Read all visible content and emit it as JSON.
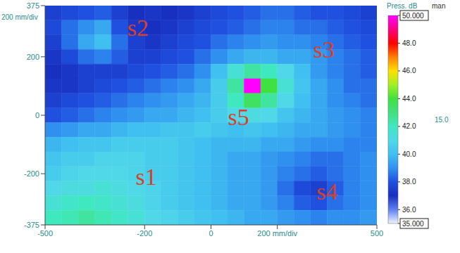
{
  "chart_data": {
    "type": "heatmap",
    "xlim": [
      -500,
      500
    ],
    "ylim": [
      -375,
      375
    ],
    "xticks": [
      -500,
      -200,
      0,
      {
        "value": 200,
        "label": "200 mm/div"
      },
      500
    ],
    "yticks": [
      375,
      200,
      0,
      -200,
      -375
    ],
    "y_axis_note": "200 mm/div",
    "x": [
      -475,
      -425,
      -375,
      -325,
      -275,
      -225,
      -175,
      -125,
      -75,
      -25,
      25,
      75,
      125,
      175,
      225,
      275,
      325,
      375,
      425,
      475
    ],
    "y": [
      350,
      300,
      250,
      200,
      150,
      100,
      50,
      0,
      -50,
      -100,
      -150,
      -200,
      -250,
      -300,
      -350
    ],
    "cells": [
      [
        37.5,
        37.8,
        38,
        38.2,
        37.5,
        37,
        37.2,
        37,
        37.2,
        37.5,
        37.8,
        38,
        38.2,
        38.5,
        38.5,
        38.2,
        38,
        38,
        37.8,
        37.5
      ],
      [
        37.8,
        38.5,
        39,
        39.5,
        38,
        37.2,
        37,
        37.2,
        37.5,
        37.8,
        38,
        38.2,
        38.5,
        38.8,
        38.8,
        38.5,
        38.5,
        38.2,
        38,
        37.8
      ],
      [
        37.5,
        38.5,
        39.5,
        40,
        38.5,
        37.5,
        37.2,
        37.5,
        37.8,
        38,
        38.5,
        38.8,
        39,
        39.2,
        39,
        39,
        38.8,
        38.5,
        38.2,
        38
      ],
      [
        37.2,
        37.8,
        38.5,
        38.8,
        38.2,
        37.5,
        37.5,
        37.8,
        38,
        38.5,
        39,
        39.5,
        39.8,
        39.8,
        39.5,
        39.5,
        39.2,
        38.8,
        38.5,
        38.2
      ],
      [
        37,
        37.2,
        37.5,
        37.5,
        37.5,
        37.8,
        38,
        38.2,
        38.5,
        39,
        40,
        41.5,
        42.5,
        42,
        41,
        40,
        39.2,
        38.8,
        38.5,
        38.2
      ],
      [
        37.2,
        37.2,
        37.5,
        37.8,
        38,
        38.2,
        38.5,
        38.8,
        39,
        39.5,
        40.5,
        42.5,
        50,
        44,
        41.5,
        40.2,
        39.5,
        39,
        38.5,
        38.5
      ],
      [
        37.5,
        37.8,
        38,
        38.2,
        38.5,
        38.8,
        39,
        39.2,
        39.5,
        39.8,
        40.5,
        42,
        43.5,
        42.5,
        41,
        40,
        39.5,
        39,
        38.8,
        38.5
      ],
      [
        38,
        38.2,
        38.5,
        38.8,
        39,
        39.2,
        39.5,
        39.5,
        39.8,
        40,
        40.5,
        41,
        41.2,
        41,
        40.2,
        39.8,
        39.5,
        39.2,
        39,
        38.8
      ],
      [
        39,
        39.2,
        39.5,
        39.5,
        39.8,
        40,
        40,
        40.2,
        40.2,
        40.5,
        40.2,
        40,
        40.2,
        40,
        39.8,
        39.5,
        39.5,
        39.2,
        39,
        38.8
      ],
      [
        39.8,
        40,
        40.2,
        40.2,
        40.5,
        40.5,
        40.5,
        40.5,
        40.2,
        40,
        39.8,
        39.8,
        39.8,
        39.5,
        39.5,
        39.2,
        39,
        39,
        38.8,
        38.8
      ],
      [
        40.2,
        40.5,
        40.5,
        40.8,
        40.8,
        40.8,
        40.5,
        40.5,
        40.2,
        40,
        39.8,
        39.5,
        39.5,
        39.2,
        39,
        38.8,
        38.5,
        38.5,
        38.8,
        39
      ],
      [
        40.5,
        40.8,
        41,
        41,
        41,
        40.8,
        40.5,
        40.5,
        40.2,
        40,
        39.8,
        39.5,
        39.5,
        39.2,
        38.8,
        38.5,
        38.2,
        38.5,
        38.8,
        39
      ],
      [
        41,
        41.2,
        41.2,
        41.5,
        41.2,
        41,
        40.8,
        40.5,
        40.2,
        40,
        39.8,
        39.5,
        39.5,
        39.2,
        38.5,
        37.8,
        37.5,
        38.2,
        38.8,
        39
      ],
      [
        41.5,
        41.8,
        42,
        41.8,
        41.5,
        41.2,
        40.8,
        40.5,
        40.2,
        40,
        39.8,
        39.5,
        39.5,
        39.2,
        38.8,
        38.2,
        38,
        38.5,
        38.8,
        39
      ],
      [
        42,
        42.2,
        42.5,
        42.2,
        41.8,
        41.5,
        41,
        40.8,
        40.5,
        40.2,
        40,
        39.8,
        39.5,
        39.5,
        39.2,
        39,
        38.8,
        39,
        39,
        39.2
      ]
    ],
    "colorbar": {
      "title": "Press. dB",
      "subtitle": "man",
      "range_label": "15.0",
      "lim": [
        35,
        50
      ],
      "ticks": [
        {
          "value": 50,
          "label": "50.000"
        },
        {
          "value": 48,
          "label": "48.0"
        },
        {
          "value": 46,
          "label": "46.0"
        },
        {
          "value": 44,
          "label": "44.0"
        },
        {
          "value": 42,
          "label": "42.0"
        },
        {
          "value": 40,
          "label": "40.0"
        },
        {
          "value": 38,
          "label": "38.0"
        },
        {
          "value": 36,
          "label": "36.0"
        },
        {
          "value": 35,
          "label": "35.000"
        }
      ]
    },
    "annotations": [
      {
        "text": "s1",
        "x": -195,
        "y": -210
      },
      {
        "text": "s2",
        "x": -220,
        "y": 300
      },
      {
        "text": "s3",
        "x": 340,
        "y": 225
      },
      {
        "text": "s4",
        "x": 350,
        "y": -260
      },
      {
        "text": "s5",
        "x": 83,
        "y": -5
      }
    ]
  }
}
